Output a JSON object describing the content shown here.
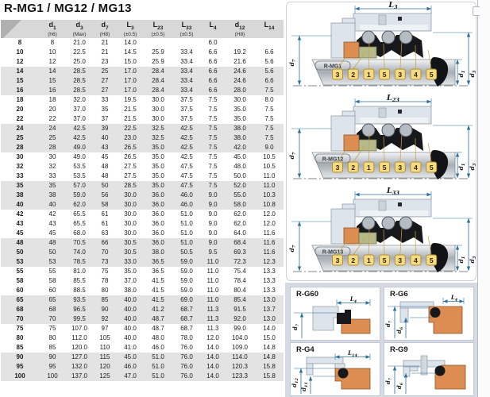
{
  "title": "R-MG1 / MG12 / MG13",
  "colors": {
    "dim": "#2b6f9c",
    "housing": "#dde4ec",
    "housing_stroke": "#97a1ac",
    "orange": "#dd8c52",
    "olive": "#b6ba8b",
    "black_part": "#17181c",
    "callout_fill": "#f3da84",
    "callout_stroke": "#b98c2e",
    "row_stripe": "#e3e3e3",
    "header_bg": "#d8d8d8",
    "bottom_bg": "#d6dbe3"
  },
  "table": {
    "columns": [
      {
        "m": "",
        "s": "",
        "n": ""
      },
      {
        "m": "d",
        "s": "1",
        "n": "(h6)"
      },
      {
        "m": "d",
        "s": "3",
        "n": "(Max)"
      },
      {
        "m": "d",
        "s": "7",
        "n": "(H8)"
      },
      {
        "m": "L",
        "s": "3",
        "n": "(±0.5)"
      },
      {
        "m": "L",
        "s": "23",
        "n": "(±0.5)"
      },
      {
        "m": "L",
        "s": "33",
        "n": "(±0.5)"
      },
      {
        "m": "L",
        "s": "4",
        "n": ""
      },
      {
        "m": "d",
        "s": "12",
        "n": "(H8)"
      },
      {
        "m": "L",
        "s": "14",
        "n": ""
      }
    ],
    "rows": [
      [
        "8",
        "8",
        "21.0",
        "21",
        "14.0",
        "",
        "",
        "6.0",
        "",
        ""
      ],
      [
        "10",
        "10",
        "22.5",
        "21",
        "14.5",
        "25.9",
        "33.4",
        "6.6",
        "19.2",
        "6.6"
      ],
      [
        "12",
        "12",
        "25.0",
        "23",
        "15.0",
        "25.9",
        "33.4",
        "6.6",
        "21.6",
        "5.6"
      ],
      [
        "14",
        "14",
        "28.5",
        "25",
        "17.0",
        "28.4",
        "33.4",
        "6.6",
        "24.6",
        "5.6"
      ],
      [
        "15",
        "15",
        "28.5",
        "27",
        "17.0",
        "28.4",
        "33.4",
        "6.6",
        "24.6",
        "6.6"
      ],
      [
        "16",
        "16",
        "28.5",
        "27",
        "17.0",
        "28.4",
        "33.4",
        "6.6",
        "28.0",
        "7.5"
      ],
      [
        "18",
        "18",
        "32.0",
        "33",
        "19.5",
        "30.0",
        "37.5",
        "7.5",
        "30.0",
        "8.0"
      ],
      [
        "20",
        "20",
        "37.0",
        "35",
        "21.5",
        "30.0",
        "37.5",
        "7.5",
        "35.0",
        "7.5"
      ],
      [
        "22",
        "22",
        "37.0",
        "37",
        "21.5",
        "30.0",
        "37.5",
        "7.5",
        "35.0",
        "7.5"
      ],
      [
        "24",
        "24",
        "42.5",
        "39",
        "22.5",
        "32.5",
        "42.5",
        "7.5",
        "38.0",
        "7.5"
      ],
      [
        "25",
        "25",
        "42.5",
        "40",
        "23.0",
        "32.5",
        "42.5",
        "7.5",
        "38.0",
        "7.5"
      ],
      [
        "28",
        "28",
        "49.0",
        "43",
        "26.5",
        "35.0",
        "42.5",
        "7.5",
        "42.0",
        "9.0"
      ],
      [
        "30",
        "30",
        "49.0",
        "45",
        "26.5",
        "35.0",
        "42.5",
        "7.5",
        "45.0",
        "10.5"
      ],
      [
        "32",
        "32",
        "53.5",
        "48",
        "27.5",
        "35.0",
        "47.5",
        "7.5",
        "48.0",
        "10.5"
      ],
      [
        "33",
        "33",
        "53.5",
        "48",
        "27.5",
        "35.0",
        "47.5",
        "7.5",
        "50.0",
        "11.0"
      ],
      [
        "35",
        "35",
        "57.0",
        "50",
        "28.5",
        "35.0",
        "47.5",
        "7.5",
        "52.0",
        "11.0"
      ],
      [
        "38",
        "38",
        "59.0",
        "56",
        "30.0",
        "36.0",
        "46.0",
        "9.0",
        "55.0",
        "10.3"
      ],
      [
        "40",
        "40",
        "62.0",
        "58",
        "30.0",
        "36.0",
        "46.0",
        "9.0",
        "58.0",
        "10.8"
      ],
      [
        "42",
        "42",
        "65.5",
        "61",
        "30.0",
        "36.0",
        "51.0",
        "9.0",
        "62.0",
        "12.0"
      ],
      [
        "43",
        "43",
        "65.5",
        "61",
        "30.0",
        "36.0",
        "51.0",
        "9.0",
        "62.0",
        "12.0"
      ],
      [
        "45",
        "45",
        "68.0",
        "63",
        "30.0",
        "36.0",
        "51.0",
        "9.0",
        "64.0",
        "11.6"
      ],
      [
        "48",
        "48",
        "70.5",
        "66",
        "30.5",
        "36.0",
        "51.0",
        "9.0",
        "68.4",
        "11.6"
      ],
      [
        "50",
        "50",
        "74.0",
        "70",
        "30.5",
        "38.0",
        "50.5",
        "9.5",
        "69.3",
        "11.6"
      ],
      [
        "53",
        "53",
        "78.5",
        "73",
        "33.0",
        "36.5",
        "59.0",
        "11.0",
        "72.3",
        "12.3"
      ],
      [
        "55",
        "55",
        "81.0",
        "75",
        "35.0",
        "36.5",
        "59.0",
        "11.0",
        "75.4",
        "13.3"
      ],
      [
        "58",
        "58",
        "85.5",
        "78",
        "37.0",
        "41.5",
        "59.0",
        "11.0",
        "78.4",
        "13.3"
      ],
      [
        "60",
        "60",
        "88.5",
        "80",
        "38.0",
        "41.5",
        "59.0",
        "11.0",
        "80.4",
        "13.3"
      ],
      [
        "65",
        "65",
        "93.5",
        "85",
        "40.0",
        "41.5",
        "69.0",
        "11.0",
        "85.4",
        "13.0"
      ],
      [
        "68",
        "68",
        "96.5",
        "90",
        "40.0",
        "41.2",
        "68.7",
        "11.3",
        "91.5",
        "13.7"
      ],
      [
        "70",
        "70",
        "99.5",
        "92",
        "40.0",
        "48.7",
        "68.7",
        "11.3",
        "92.0",
        "13.0"
      ],
      [
        "75",
        "75",
        "107.0",
        "97",
        "40.0",
        "48.7",
        "68.7",
        "11.3",
        "99.0",
        "14.0"
      ],
      [
        "80",
        "80",
        "112.0",
        "105",
        "40.0",
        "48.0",
        "78.0",
        "12.0",
        "104.0",
        "15.0"
      ],
      [
        "85",
        "85",
        "120.0",
        "110",
        "41.0",
        "46.0",
        "76.0",
        "14.0",
        "109.0",
        "14.8"
      ],
      [
        "90",
        "90",
        "127.0",
        "115",
        "45.0",
        "51.0",
        "76.0",
        "14.0",
        "114.0",
        "14.8"
      ],
      [
        "95",
        "95",
        "132.0",
        "120",
        "46.0",
        "51.0",
        "76.0",
        "14.0",
        "120.3",
        "15.8"
      ],
      [
        "100",
        "100",
        "137.0",
        "125",
        "47.0",
        "51.0",
        "76.0",
        "14.0",
        "123.3",
        "15.8"
      ]
    ]
  },
  "diagrams": [
    {
      "name": "R-MG1",
      "dim_m": "L",
      "dim_s": "3",
      "callouts": [
        "3",
        "2",
        "1",
        "5",
        "3",
        "4",
        "5"
      ],
      "left_dim": {
        "m": "d",
        "s": "7"
      },
      "right_dims": [
        {
          "m": "d",
          "s": "1"
        },
        {
          "m": "d",
          "s": "3"
        }
      ]
    },
    {
      "name": "R-MG12",
      "dim_m": "L",
      "dim_s": "23",
      "callouts": [
        "3",
        "2",
        "1",
        "5",
        "3",
        "4",
        "5"
      ],
      "left_dim": {
        "m": "d",
        "s": "7"
      },
      "right_dims": [
        {
          "m": "d",
          "s": "1"
        },
        {
          "m": "d",
          "s": "3"
        }
      ]
    },
    {
      "name": "R-MG13",
      "dim_m": "L",
      "dim_s": "33",
      "callouts": [
        "3",
        "2",
        "1",
        "5",
        "3",
        "4",
        "5"
      ],
      "left_dim": {
        "m": "d",
        "s": "7"
      },
      "right_dims": [
        {
          "m": "d",
          "s": "1"
        },
        {
          "m": "d",
          "s": "3"
        }
      ]
    }
  ],
  "panels": [
    {
      "name": "R-G60",
      "type": "g60",
      "top_dim": {
        "m": "L",
        "s": "4"
      },
      "dims": [
        {
          "m": "d",
          "s": "7"
        }
      ]
    },
    {
      "name": "R-G6",
      "type": "g6",
      "top_dim": {
        "m": "L",
        "s": "4"
      },
      "dims": [
        {
          "m": "d",
          "s": "7"
        },
        {
          "m": "d",
          "s": "6"
        }
      ]
    },
    {
      "name": "R-G4",
      "type": "g4",
      "top_dim": {
        "m": "L",
        "s": "14"
      },
      "dims": [
        {
          "m": "d",
          "s": "12"
        },
        {
          "m": "d",
          "s": "11"
        }
      ]
    },
    {
      "name": "R-G9",
      "type": "g9",
      "top_dim": null,
      "dims": [
        {
          "m": "d",
          "s": "7"
        },
        {
          "m": "d",
          "s": "6"
        }
      ]
    }
  ]
}
